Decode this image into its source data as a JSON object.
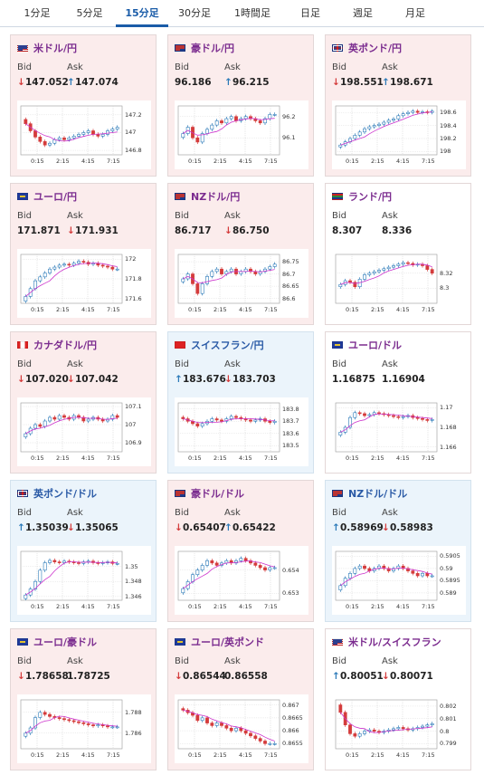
{
  "tabs": [
    {
      "label": "1分足",
      "active": false
    },
    {
      "label": "5分足",
      "active": false
    },
    {
      "label": "15分足",
      "active": true
    },
    {
      "label": "30分足",
      "active": false
    },
    {
      "label": "1時間足",
      "active": false
    },
    {
      "label": "日足",
      "active": false
    },
    {
      "label": "週足",
      "active": false
    },
    {
      "label": "月足",
      "active": false
    }
  ],
  "labels": {
    "bid": "Bid",
    "ask": "Ask"
  },
  "colors": {
    "up": "#2a79b8",
    "down": "#d43b3b",
    "ma": "#cc33cc",
    "active_tab": "#1a5ca8"
  },
  "cards": [
    {
      "name": "米ドル/円",
      "flag": "us",
      "bg": "red",
      "bid": "147.052",
      "bid_dir": "down",
      "ask": "147.074",
      "ask_dir": "up",
      "chart_data": {
        "type": "candlestick",
        "x_ticks": [
          "0:15",
          "2:15",
          "4:15",
          "7:15"
        ],
        "y_ticks": [
          "147.2",
          "147",
          "146.8"
        ],
        "ylim": [
          146.75,
          147.3
        ],
        "close": [
          147.1,
          147.02,
          146.95,
          146.9,
          146.86,
          146.88,
          146.92,
          146.94,
          146.92,
          146.94,
          146.96,
          146.98,
          147.0,
          147.02,
          146.98,
          146.96,
          146.98,
          147.02,
          147.04,
          147.06
        ]
      }
    },
    {
      "name": "豪ドル/円",
      "flag": "au",
      "bg": "red",
      "bid": "96.186",
      "bid_dir": "",
      "ask": "96.215",
      "ask_dir": "up",
      "chart_data": {
        "type": "candlestick",
        "x_ticks": [
          "0:15",
          "2:15",
          "4:15",
          "7:15"
        ],
        "y_ticks": [
          "96.2",
          "96.1"
        ],
        "ylim": [
          96.02,
          96.25
        ],
        "close": [
          96.12,
          96.15,
          96.1,
          96.08,
          96.12,
          96.14,
          96.16,
          96.18,
          96.17,
          96.19,
          96.2,
          96.18,
          96.19,
          96.2,
          96.19,
          96.18,
          96.17,
          96.19,
          96.21,
          96.21
        ]
      }
    },
    {
      "name": "英ポンド/円",
      "flag": "gb",
      "bg": "red",
      "bid": "198.551",
      "bid_dir": "down",
      "ask": "198.671",
      "ask_dir": "up",
      "chart_data": {
        "type": "candlestick",
        "x_ticks": [
          "0:15",
          "2:15",
          "4:15",
          "7:15"
        ],
        "y_ticks": [
          "198.6",
          "198.4",
          "198.2",
          "198"
        ],
        "ylim": [
          197.95,
          198.7
        ],
        "close": [
          198.1,
          198.15,
          198.2,
          198.25,
          198.3,
          198.35,
          198.38,
          198.4,
          198.42,
          198.45,
          198.48,
          198.5,
          198.55,
          198.58,
          198.6,
          198.62,
          198.6,
          198.61,
          198.6,
          198.62
        ]
      }
    },
    {
      "name": "ユーロ/円",
      "flag": "eu",
      "bg": "red",
      "bid": "171.871",
      "bid_dir": "",
      "ask": "171.931",
      "ask_dir": "down",
      "chart_data": {
        "type": "candlestick",
        "x_ticks": [
          "0:15",
          "2:15",
          "4:15",
          "7:15"
        ],
        "y_ticks": [
          "172",
          "171.8",
          "171.6"
        ],
        "ylim": [
          171.55,
          172.05
        ],
        "close": [
          171.62,
          171.7,
          171.78,
          171.82,
          171.86,
          171.9,
          171.92,
          171.94,
          171.95,
          171.94,
          171.96,
          171.98,
          171.97,
          171.95,
          171.96,
          171.94,
          171.93,
          171.92,
          171.9,
          171.9
        ]
      }
    },
    {
      "name": "NZドル/円",
      "flag": "nz",
      "bg": "red",
      "bid": "86.717",
      "bid_dir": "",
      "ask": "86.750",
      "ask_dir": "down",
      "chart_data": {
        "type": "candlestick",
        "x_ticks": [
          "0:15",
          "2:15",
          "4:15",
          "7:15"
        ],
        "y_ticks": [
          "86.75",
          "86.7",
          "86.65",
          "86.6"
        ],
        "ylim": [
          86.58,
          86.78
        ],
        "close": [
          86.68,
          86.7,
          86.66,
          86.62,
          86.66,
          86.69,
          86.71,
          86.72,
          86.7,
          86.71,
          86.72,
          86.7,
          86.71,
          86.72,
          86.71,
          86.7,
          86.71,
          86.72,
          86.73,
          86.74
        ]
      }
    },
    {
      "name": "ランド/円",
      "flag": "za",
      "bg": "",
      "bid": "8.307",
      "bid_dir": "",
      "ask": "8.336",
      "ask_dir": "",
      "chart_data": {
        "type": "candlestick",
        "x_ticks": [
          "0:15",
          "2:15",
          "4:15",
          "7:15"
        ],
        "y_ticks": [
          "8.32",
          "8.3"
        ],
        "ylim": [
          8.28,
          8.345
        ],
        "close": [
          8.305,
          8.31,
          8.308,
          8.302,
          8.312,
          8.318,
          8.32,
          8.322,
          8.324,
          8.326,
          8.328,
          8.33,
          8.332,
          8.334,
          8.333,
          8.331,
          8.332,
          8.33,
          8.325,
          8.32
        ]
      }
    },
    {
      "name": "カナダドル/円",
      "flag": "ca",
      "bg": "red",
      "bid": "107.020",
      "bid_dir": "down",
      "ask": "107.042",
      "ask_dir": "down",
      "chart_data": {
        "type": "candlestick",
        "x_ticks": [
          "0:15",
          "2:15",
          "4:15",
          "7:15"
        ],
        "y_ticks": [
          "107.1",
          "107",
          "106.9"
        ],
        "ylim": [
          106.85,
          107.12
        ],
        "close": [
          106.95,
          106.98,
          107.0,
          106.99,
          107.02,
          107.04,
          107.03,
          107.05,
          107.04,
          107.03,
          107.05,
          107.04,
          107.02,
          107.03,
          107.04,
          107.03,
          107.02,
          107.03,
          107.05,
          107.04
        ]
      }
    },
    {
      "name": "スイスフラン/円",
      "flag": "ch",
      "bg": "blue",
      "bid": "183.676",
      "bid_dir": "up",
      "ask": "183.703",
      "ask_dir": "down",
      "chart_data": {
        "type": "candlestick",
        "x_ticks": [
          "0:15",
          "2:15",
          "4:15",
          "7:15"
        ],
        "y_ticks": [
          "183.8",
          "183.7",
          "183.6",
          "183.5"
        ],
        "ylim": [
          183.45,
          183.85
        ],
        "close": [
          183.72,
          183.7,
          183.68,
          183.66,
          183.68,
          183.7,
          183.72,
          183.71,
          183.7,
          183.72,
          183.74,
          183.73,
          183.72,
          183.71,
          183.7,
          183.71,
          183.72,
          183.7,
          183.69,
          183.7
        ]
      }
    },
    {
      "name": "ユーロ/ドル",
      "flag": "eu",
      "bg": "",
      "bid": "1.16875",
      "bid_dir": "",
      "ask": "1.16904",
      "ask_dir": "",
      "chart_data": {
        "type": "candlestick",
        "x_ticks": [
          "0:15",
          "2:15",
          "4:15",
          "7:15"
        ],
        "y_ticks": [
          "1.17",
          "1.168",
          "1.166"
        ],
        "ylim": [
          1.1655,
          1.1705
        ],
        "close": [
          1.1675,
          1.168,
          1.169,
          1.1695,
          1.1694,
          1.1692,
          1.1693,
          1.1695,
          1.1694,
          1.1693,
          1.1692,
          1.1691,
          1.169,
          1.1691,
          1.1692,
          1.169,
          1.1689,
          1.1688,
          1.1687,
          1.1688
        ]
      }
    },
    {
      "name": "英ポンド/ドル",
      "flag": "gb",
      "bg": "blue",
      "bid": "1.35039",
      "bid_dir": "up",
      "ask": "1.35065",
      "ask_dir": "down",
      "chart_data": {
        "type": "candlestick",
        "x_ticks": [
          "0:15",
          "2:15",
          "4:15",
          "7:15"
        ],
        "y_ticks": [
          "1.35",
          "1.348",
          "1.346"
        ],
        "ylim": [
          1.3455,
          1.352
        ],
        "close": [
          1.3462,
          1.347,
          1.348,
          1.3495,
          1.3505,
          1.3508,
          1.3506,
          1.3505,
          1.3507,
          1.3506,
          1.3505,
          1.3504,
          1.3506,
          1.3507,
          1.3505,
          1.3504,
          1.3505,
          1.3506,
          1.3504,
          1.3504
        ]
      }
    },
    {
      "name": "豪ドル/ドル",
      "flag": "au",
      "bg": "red",
      "bid": "0.65407",
      "bid_dir": "down",
      "ask": "0.65422",
      "ask_dir": "up",
      "chart_data": {
        "type": "candlestick",
        "x_ticks": [
          "0:15",
          "2:15",
          "4:15",
          "7:15"
        ],
        "y_ticks": [
          "0.654",
          "0.653"
        ],
        "ylim": [
          0.6527,
          0.6548
        ],
        "close": [
          0.6532,
          0.6535,
          0.6538,
          0.654,
          0.6542,
          0.6544,
          0.6543,
          0.6542,
          0.6543,
          0.6544,
          0.6543,
          0.6544,
          0.6545,
          0.6544,
          0.6543,
          0.6542,
          0.6541,
          0.654,
          0.6541,
          0.6541
        ]
      }
    },
    {
      "name": "NZドル/ドル",
      "flag": "nz",
      "bg": "blue",
      "bid": "0.58969",
      "bid_dir": "up",
      "ask": "0.58983",
      "ask_dir": "down",
      "chart_data": {
        "type": "candlestick",
        "x_ticks": [
          "0:15",
          "2:15",
          "4:15",
          "7:15"
        ],
        "y_ticks": [
          "0.5905",
          "0.59",
          "0.5895",
          "0.589"
        ],
        "ylim": [
          0.5887,
          0.5907
        ],
        "close": [
          0.5893,
          0.5896,
          0.5898,
          0.59,
          0.5901,
          0.59,
          0.5899,
          0.59,
          0.5901,
          0.59,
          0.5899,
          0.59,
          0.5901,
          0.59,
          0.5899,
          0.5898,
          0.5897,
          0.5898,
          0.5897,
          0.5897
        ]
      }
    },
    {
      "name": "ユーロ/豪ドル",
      "flag": "eu",
      "bg": "red",
      "bid": "1.78658",
      "bid_dir": "down",
      "ask": "1.78725",
      "ask_dir": "",
      "chart_data": {
        "type": "candlestick",
        "x_ticks": [
          "0:15",
          "2:15",
          "4:15",
          "7:15"
        ],
        "y_ticks": [
          "1.788",
          "1.786"
        ],
        "ylim": [
          1.7845,
          1.7892
        ],
        "close": [
          1.786,
          1.7865,
          1.7875,
          1.788,
          1.7878,
          1.7876,
          1.7875,
          1.7874,
          1.7873,
          1.7872,
          1.7871,
          1.787,
          1.7869,
          1.7868,
          1.7867,
          1.7868,
          1.7867,
          1.7866,
          1.7866,
          1.7866
        ]
      }
    },
    {
      "name": "ユーロ/英ポンド",
      "flag": "eu",
      "bg": "red",
      "bid": "0.86544",
      "bid_dir": "down",
      "ask": "0.86558",
      "ask_dir": "",
      "chart_data": {
        "type": "candlestick",
        "x_ticks": [
          "0:15",
          "2:15",
          "4:15",
          "7:15"
        ],
        "y_ticks": [
          "0.867",
          "0.8665",
          "0.866",
          "0.8655"
        ],
        "ylim": [
          0.8653,
          0.8672
        ],
        "close": [
          0.8668,
          0.8667,
          0.8666,
          0.8664,
          0.8665,
          0.8663,
          0.8662,
          0.8663,
          0.8662,
          0.8661,
          0.866,
          0.8661,
          0.866,
          0.8659,
          0.8658,
          0.8657,
          0.8656,
          0.8655,
          0.8655,
          0.8655
        ]
      }
    },
    {
      "name": "米ドル/スイスフラン",
      "flag": "us",
      "bg": "",
      "bid": "0.80051",
      "bid_dir": "up",
      "ask": "0.80071",
      "ask_dir": "down",
      "chart_data": {
        "type": "candlestick",
        "x_ticks": [
          "0:15",
          "2:15",
          "4:15",
          "7:15"
        ],
        "y_ticks": [
          "0.802",
          "0.801",
          "0.8",
          "0.799"
        ],
        "ylim": [
          0.7986,
          0.8025
        ],
        "close": [
          0.8015,
          0.8005,
          0.7998,
          0.7996,
          0.7998,
          0.8,
          0.8001,
          0.8,
          0.7999,
          0.8,
          0.8001,
          0.8002,
          0.8003,
          0.8002,
          0.8001,
          0.8002,
          0.8003,
          0.8004,
          0.8005,
          0.8006
        ]
      }
    }
  ]
}
